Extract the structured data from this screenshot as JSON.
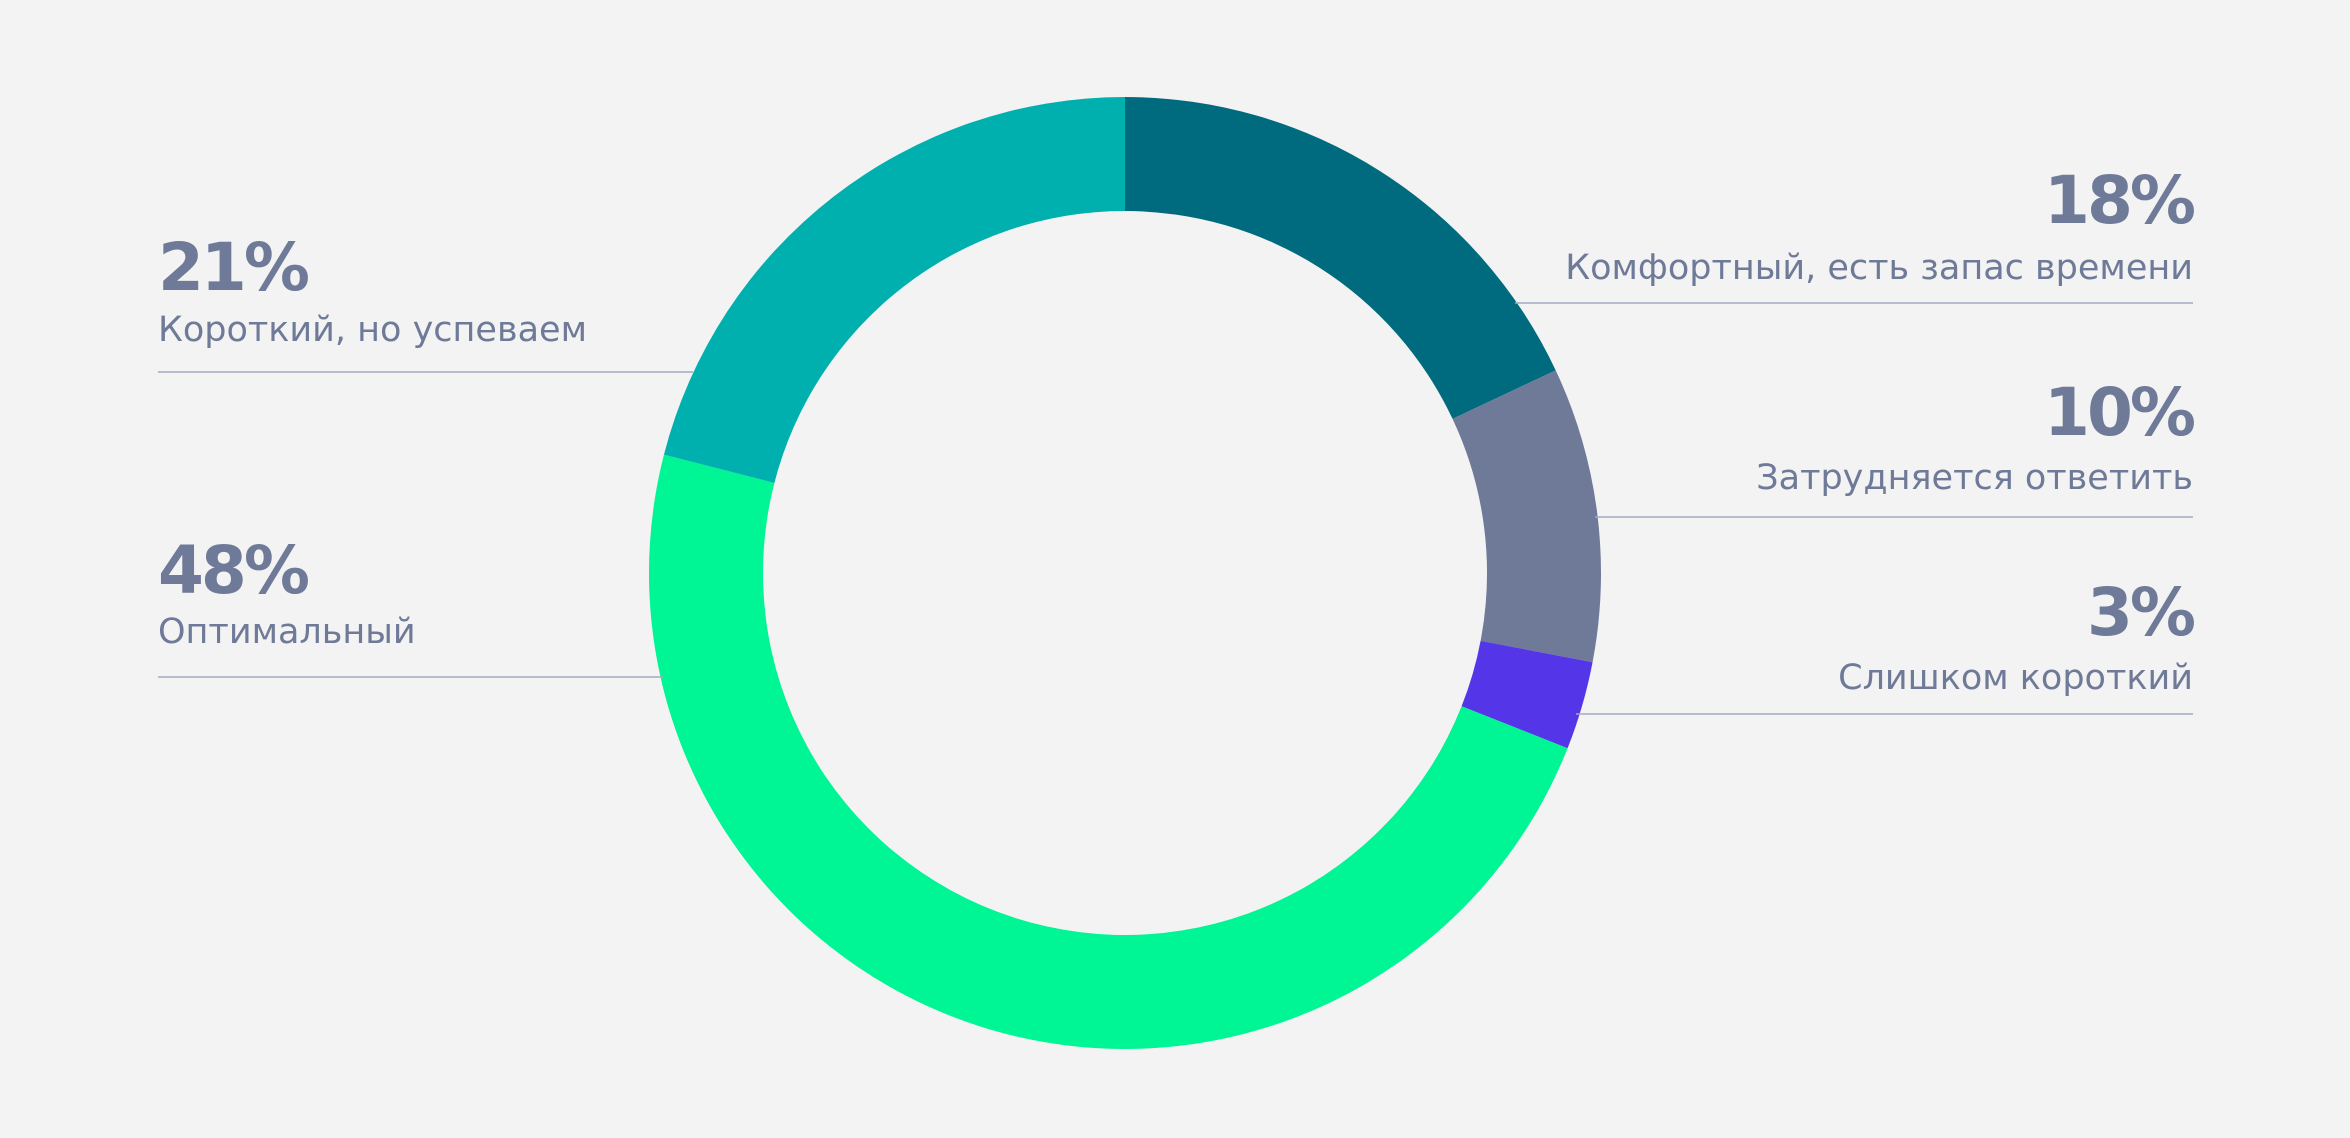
{
  "chart_data": {
    "type": "pie",
    "donut": true,
    "legend": "none",
    "series": [
      {
        "name": "Комфортный, есть запас времени",
        "value": 18,
        "label": "18%",
        "color": "#006a7e"
      },
      {
        "name": "Затрудняется ответить",
        "value": 10,
        "label": "10%",
        "color": "#6e7a98"
      },
      {
        "name": "Слишком короткий",
        "value": 3,
        "label": "3%",
        "color": "#5535e8"
      },
      {
        "name": "Оптимальный",
        "value": 48,
        "label": "48%",
        "color": "#00f594"
      },
      {
        "name": "Короткий, но успеваем",
        "value": 21,
        "label": "21%",
        "color": "#00b0ae"
      }
    ]
  }
}
